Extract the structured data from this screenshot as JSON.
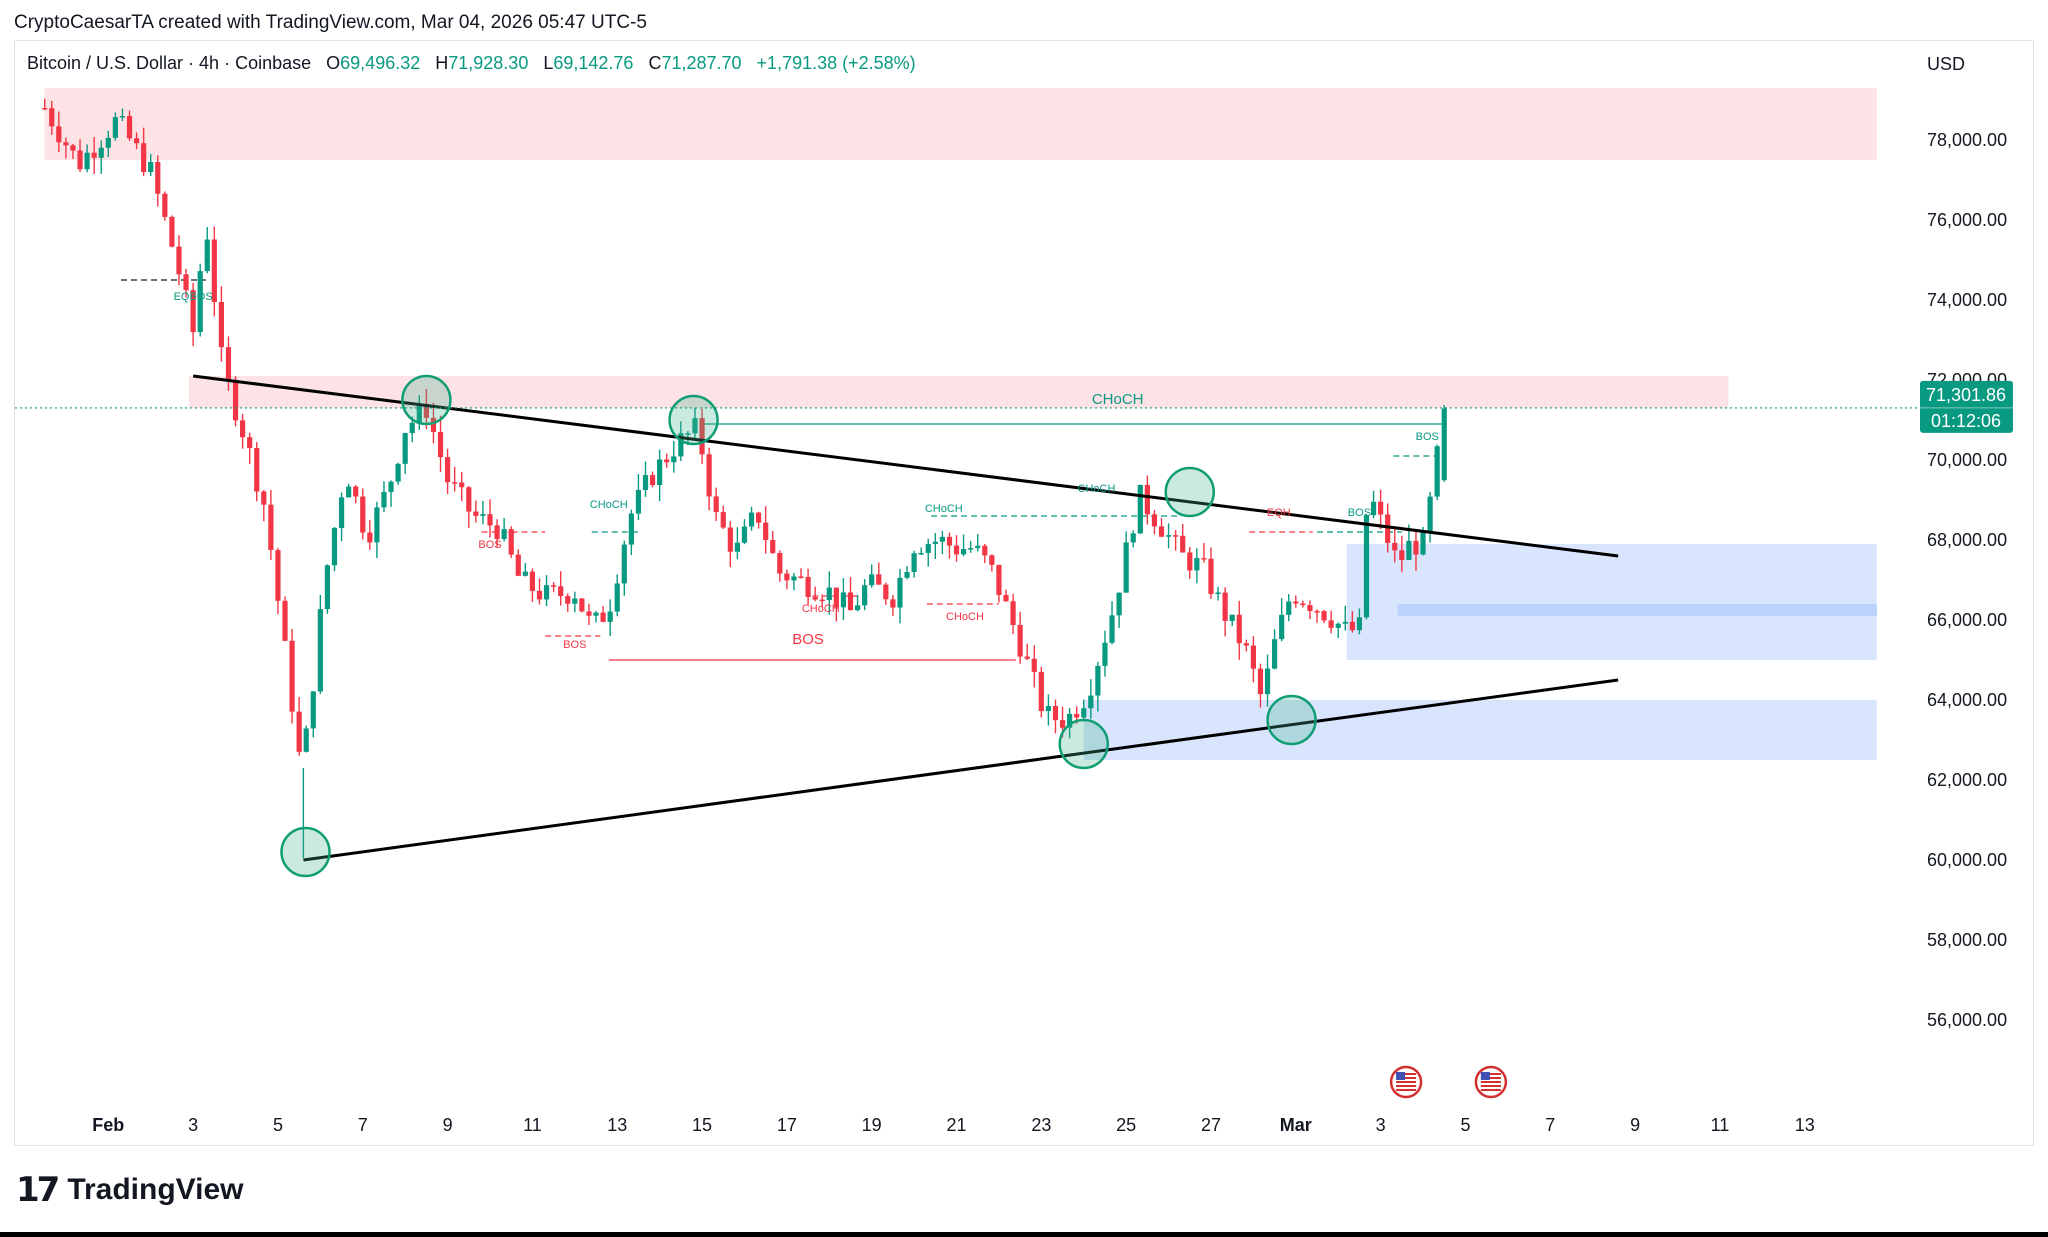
{
  "header": {
    "credit": "CryptoCaesarTA created with TradingView.com, Mar 04, 2026 05:47 UTC-5"
  },
  "legend": {
    "symbol": "Bitcoin / U.S. Dollar · 4h · Coinbase",
    "open_label": "O",
    "open": "69,496.32",
    "high_label": "H",
    "high": "71,928.30",
    "low_label": "L",
    "low": "69,142.76",
    "close_label": "C",
    "close": "71,287.70",
    "change": "+1,791.38 (+2.58%)"
  },
  "currency": "USD",
  "price_label": {
    "price": "71,301.86",
    "countdown": "01:12:06"
  },
  "brand": {
    "name": "TradingView",
    "mark": "17"
  },
  "colors": {
    "up": "#089981",
    "down": "#f23645",
    "supply_zone": "#fde2e4",
    "demand_zone": "#d6e4fd",
    "circle_stroke": "#0f9d74",
    "circle_fill": "#3fb08b",
    "trendline": "#000000"
  },
  "chart_data": {
    "type": "candlestick",
    "symbol": "Bitcoin / U.S. Dollar",
    "interval": "4h",
    "exchange": "Coinbase",
    "y_axis": {
      "ticks": [
        56000,
        58000,
        60000,
        62000,
        64000,
        66000,
        68000,
        70000,
        72000,
        74000,
        76000,
        78000
      ],
      "tick_labels": [
        "56,000.00",
        "58,000.00",
        "60,000.00",
        "62,000.00",
        "64,000.00",
        "66,000.00",
        "68,000.00",
        "70,000.00",
        "72,000.00",
        "74,000.00",
        "76,000.00",
        "78,000.00"
      ],
      "range": [
        54000,
        80500
      ],
      "grid": false
    },
    "x_axis": {
      "ticks": [
        {
          "day": 1,
          "label": "Feb",
          "bold": true
        },
        {
          "day": 3,
          "label": "3"
        },
        {
          "day": 5,
          "label": "5"
        },
        {
          "day": 7,
          "label": "7"
        },
        {
          "day": 9,
          "label": "9"
        },
        {
          "day": 11,
          "label": "11"
        },
        {
          "day": 13,
          "label": "13"
        },
        {
          "day": 15,
          "label": "15"
        },
        {
          "day": 17,
          "label": "17"
        },
        {
          "day": 19,
          "label": "19"
        },
        {
          "day": 21,
          "label": "21"
        },
        {
          "day": 23,
          "label": "23"
        },
        {
          "day": 25,
          "label": "25"
        },
        {
          "day": 27,
          "label": "27"
        },
        {
          "day": 29,
          "label": "Mar",
          "bold": true
        },
        {
          "day": 31,
          "label": "3"
        },
        {
          "day": 33,
          "label": "5"
        },
        {
          "day": 35,
          "label": "7"
        },
        {
          "day": 37,
          "label": "9"
        },
        {
          "day": 39,
          "label": "11"
        },
        {
          "day": 41,
          "label": "13"
        }
      ],
      "range": [
        -1.2,
        43.6
      ]
    },
    "anchors": [
      [
        -0.5,
        78800
      ],
      [
        0.3,
        77400
      ],
      [
        1.2,
        78500
      ],
      [
        2.0,
        77200
      ],
      [
        2.6,
        75000
      ],
      [
        3.0,
        73200
      ],
      [
        3.3,
        76000
      ],
      [
        3.7,
        72200
      ],
      [
        4.1,
        71000
      ],
      [
        4.7,
        68800
      ],
      [
        5.3,
        64200
      ],
      [
        5.55,
        62200
      ],
      [
        5.75,
        63700
      ],
      [
        6.1,
        67000
      ],
      [
        6.6,
        69800
      ],
      [
        7.1,
        68100
      ],
      [
        7.6,
        69300
      ],
      [
        8.0,
        70800
      ],
      [
        8.5,
        71300
      ],
      [
        9.0,
        69500
      ],
      [
        9.6,
        68600
      ],
      [
        10.2,
        68300
      ],
      [
        10.7,
        67000
      ],
      [
        11.3,
        66600
      ],
      [
        12.0,
        66700
      ],
      [
        12.4,
        65800
      ],
      [
        12.8,
        66300
      ],
      [
        13.3,
        68600
      ],
      [
        13.8,
        69600
      ],
      [
        14.4,
        70400
      ],
      [
        14.9,
        70800
      ],
      [
        15.3,
        68600
      ],
      [
        15.8,
        67700
      ],
      [
        16.3,
        68700
      ],
      [
        16.8,
        67200
      ],
      [
        17.5,
        66900
      ],
      [
        18.0,
        66700
      ],
      [
        18.5,
        66200
      ],
      [
        18.9,
        66900
      ],
      [
        19.5,
        66600
      ],
      [
        20.0,
        67900
      ],
      [
        20.6,
        68000
      ],
      [
        21.0,
        67800
      ],
      [
        21.4,
        67800
      ],
      [
        21.8,
        67300
      ],
      [
        22.4,
        65700
      ],
      [
        23.1,
        63600
      ],
      [
        23.6,
        63500
      ],
      [
        24.1,
        64200
      ],
      [
        24.7,
        66300
      ],
      [
        25.3,
        69100
      ],
      [
        25.8,
        68400
      ],
      [
        26.3,
        67600
      ],
      [
        26.8,
        67300
      ],
      [
        27.3,
        66200
      ],
      [
        27.8,
        65300
      ],
      [
        28.2,
        64000
      ],
      [
        28.5,
        65400
      ],
      [
        28.9,
        66700
      ],
      [
        29.4,
        66400
      ],
      [
        29.8,
        66100
      ],
      [
        30.2,
        65700
      ],
      [
        30.5,
        65800
      ],
      [
        30.7,
        69200
      ],
      [
        31.1,
        68200
      ],
      [
        31.4,
        67400
      ],
      [
        31.7,
        67900
      ],
      [
        32.0,
        67900
      ],
      [
        32.2,
        69100
      ],
      [
        32.5,
        71287
      ]
    ],
    "zones": [
      {
        "kind": "supply",
        "x0": -0.5,
        "x1": 42.7,
        "y0": 77500,
        "y1": 79300
      },
      {
        "kind": "supply",
        "x0": 2.9,
        "x1": 39.2,
        "y0": 71300,
        "y1": 72100
      },
      {
        "kind": "demand",
        "x0": 30.2,
        "x1": 42.7,
        "y0": 65000,
        "y1": 67900
      },
      {
        "kind": "demand-core",
        "x0": 31.4,
        "x1": 42.7,
        "y0": 66100,
        "y1": 66400
      },
      {
        "kind": "demand",
        "x0": 24.0,
        "x1": 42.7,
        "y0": 62500,
        "y1": 64000
      }
    ],
    "trendlines": [
      {
        "name": "descending",
        "x0": 3.0,
        "y0": 72100,
        "x1": 36.6,
        "y1": 67600
      },
      {
        "name": "ascending",
        "x0": 5.6,
        "y0": 60000,
        "x1": 36.6,
        "y1": 64500
      }
    ],
    "touch_points": [
      {
        "x": 5.65,
        "y": 60200
      },
      {
        "x": 8.5,
        "y": 71500
      },
      {
        "x": 14.8,
        "y": 71000
      },
      {
        "x": 26.5,
        "y": 69200
      },
      {
        "x": 24.0,
        "y": 62900
      },
      {
        "x": 28.9,
        "y": 63500
      }
    ],
    "annotations": [
      {
        "text": "EQBOS",
        "x": 3.0,
        "y": 74000,
        "color": "#089981"
      },
      {
        "text": "BOS",
        "x": 10.0,
        "y": 67800,
        "color": "#f23645"
      },
      {
        "text": "CHoCH",
        "x": 12.8,
        "y": 68800,
        "color": "#089981"
      },
      {
        "text": "BOS",
        "x": 12.0,
        "y": 65300,
        "color": "#f23645"
      },
      {
        "text": "BOS",
        "x": 17.5,
        "y": 65400,
        "color": "#f23645",
        "large": true
      },
      {
        "text": "CHoCH",
        "x": 17.8,
        "y": 66200,
        "color": "#f23645"
      },
      {
        "text": "CHoCH",
        "x": 20.7,
        "y": 68700,
        "color": "#089981"
      },
      {
        "text": "CHoCH",
        "x": 21.2,
        "y": 66000,
        "color": "#f23645"
      },
      {
        "text": "CHoCH",
        "x": 24.3,
        "y": 69200,
        "color": "#089981"
      },
      {
        "text": "CHoCH",
        "x": 24.8,
        "y": 71400,
        "color": "#089981",
        "large": true
      },
      {
        "text": "EQH",
        "x": 28.6,
        "y": 68600,
        "color": "#f23645"
      },
      {
        "text": "BOS",
        "x": 30.5,
        "y": 68600,
        "color": "#089981"
      },
      {
        "text": "BOS",
        "x": 32.1,
        "y": 70500,
        "color": "#089981"
      }
    ],
    "structure_lines": [
      {
        "x0": 12.8,
        "x1": 22.4,
        "y": 65000,
        "color": "#f23645",
        "dash": false
      },
      {
        "x0": 15.0,
        "x1": 32.5,
        "y": 70900,
        "color": "#089981",
        "dash": false
      },
      {
        "x0": 20.4,
        "x1": 26.3,
        "y": 68600,
        "color": "#089981",
        "dash": true
      },
      {
        "x0": 12.4,
        "x1": 13.5,
        "y": 68200,
        "color": "#089981",
        "dash": true
      },
      {
        "x0": 9.8,
        "x1": 11.3,
        "y": 68200,
        "color": "#f23645",
        "dash": true
      },
      {
        "x0": 11.3,
        "x1": 12.6,
        "y": 65600,
        "color": "#f23645",
        "dash": true
      },
      {
        "x0": 17.6,
        "x1": 18.9,
        "y": 66600,
        "color": "#f23645",
        "dash": true
      },
      {
        "x0": 20.3,
        "x1": 22.0,
        "y": 66400,
        "color": "#f23645",
        "dash": true
      },
      {
        "x0": 27.9,
        "x1": 29.4,
        "y": 68200,
        "color": "#f23645",
        "dash": true
      },
      {
        "x0": 29.5,
        "x1": 31.5,
        "y": 68200,
        "color": "#089981",
        "dash": true
      },
      {
        "x0": 31.3,
        "x1": 32.4,
        "y": 70100,
        "color": "#089981",
        "dash": true
      },
      {
        "x0": 1.3,
        "x1": 3.3,
        "y": 74500,
        "color": "#131722",
        "dash": true
      }
    ],
    "last_price": 71301.86,
    "event_markers": [
      {
        "day": 31.6,
        "icon": "us-flag-icon"
      },
      {
        "day": 33.6,
        "icon": "us-flag-icon"
      }
    ]
  }
}
